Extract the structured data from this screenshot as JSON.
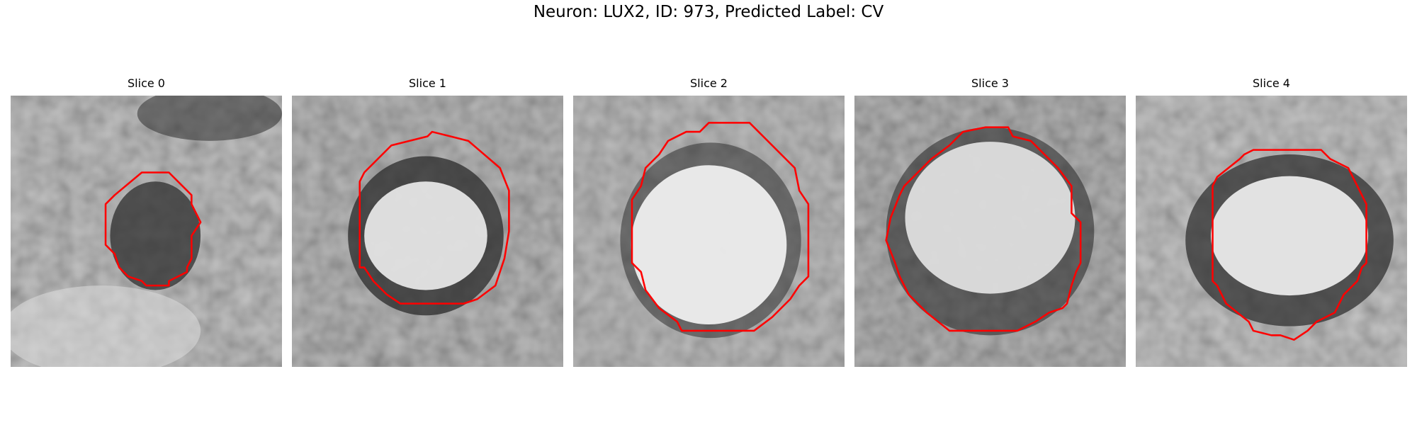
{
  "figure": {
    "title": "Neuron: LUX2, ID: 973, Predicted Label: CV",
    "contour_color": "#ff0000"
  },
  "panels": [
    {
      "title": "Slice 0",
      "icon": "grayscale-microscopy-image",
      "contour": "red-cell-outline"
    },
    {
      "title": "Slice 1",
      "icon": "grayscale-microscopy-image",
      "contour": "red-cell-outline"
    },
    {
      "title": "Slice 2",
      "icon": "grayscale-microscopy-image",
      "contour": "red-cell-outline"
    },
    {
      "title": "Slice 3",
      "icon": "grayscale-microscopy-image",
      "contour": "red-cell-outline"
    },
    {
      "title": "Slice 4",
      "icon": "grayscale-microscopy-image",
      "contour": "red-cell-outline"
    }
  ]
}
